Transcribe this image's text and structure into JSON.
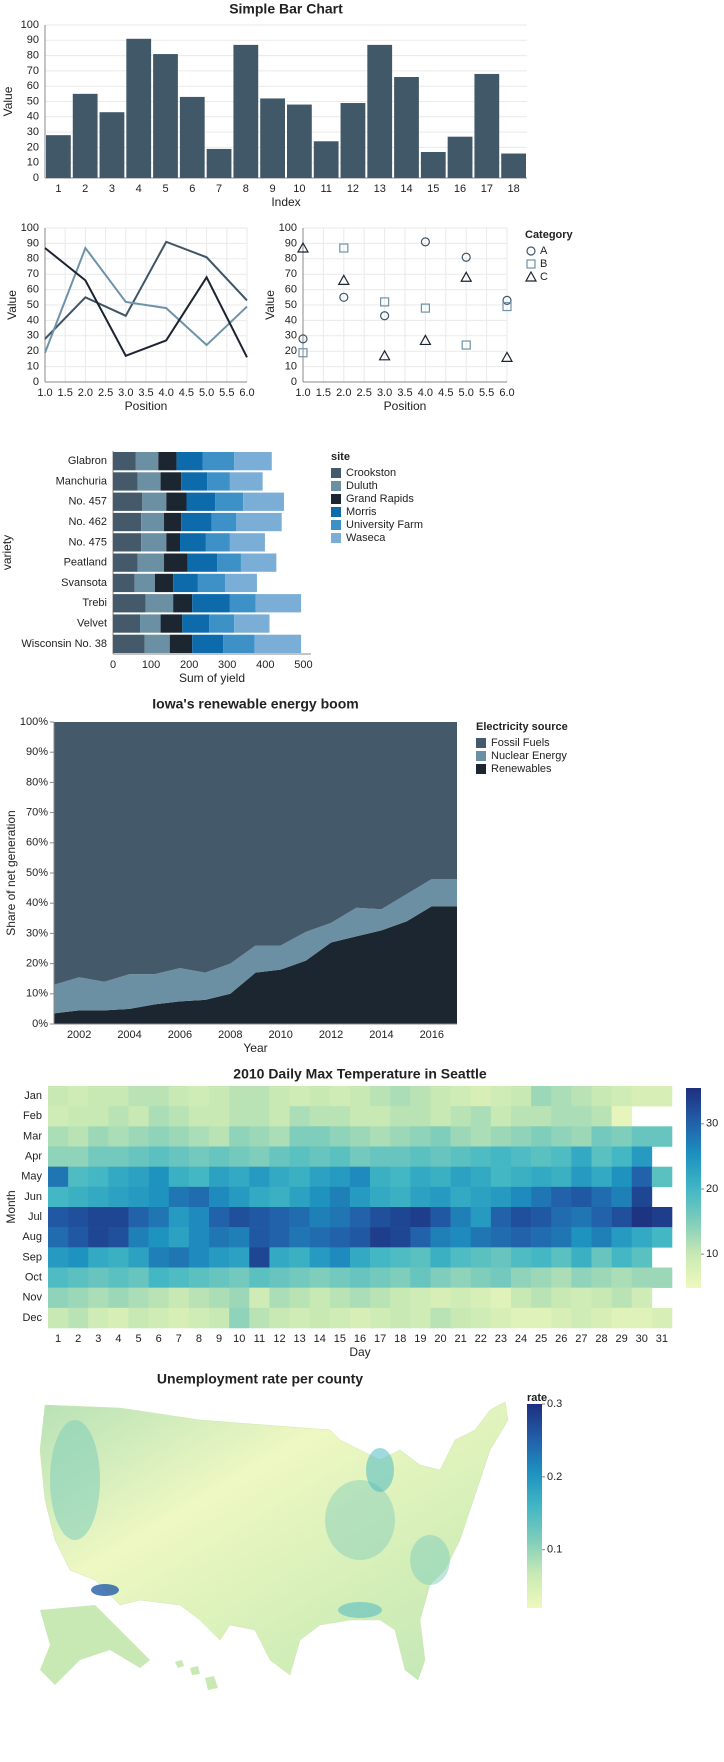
{
  "chart_data": [
    {
      "type": "bar",
      "title": "Simple Bar Chart",
      "x_label": "Index",
      "y_label": "Value",
      "categories": [
        "1",
        "2",
        "3",
        "4",
        "5",
        "6",
        "7",
        "8",
        "9",
        "10",
        "11",
        "12",
        "13",
        "14",
        "15",
        "16",
        "17",
        "18"
      ],
      "values": [
        28,
        55,
        43,
        91,
        81,
        53,
        19,
        87,
        52,
        48,
        24,
        49,
        87,
        66,
        17,
        27,
        68,
        16
      ],
      "color": "#415868",
      "ylim": [
        0,
        100
      ],
      "yticks": [
        0,
        10,
        20,
        30,
        40,
        50,
        60,
        70,
        80,
        90,
        100
      ],
      "grid": true
    },
    {
      "type": "line",
      "x_label": "Position",
      "y_label": "Value",
      "x": [
        1,
        2,
        3,
        4,
        5,
        6
      ],
      "series": [
        {
          "name": "A",
          "color": "#3f5566",
          "values": [
            28,
            55,
            43,
            91,
            81,
            53
          ]
        },
        {
          "name": "B",
          "color": "#6e93a8",
          "values": [
            19,
            87,
            52,
            48,
            24,
            49
          ]
        },
        {
          "name": "C",
          "color": "#1b2430",
          "values": [
            87,
            66,
            17,
            27,
            68,
            16
          ]
        }
      ],
      "xlim": [
        1,
        6
      ],
      "xticks": [
        {
          "value": 1,
          "label": "1.0"
        },
        {
          "value": 1.5,
          "label": "1.5"
        },
        {
          "value": 2,
          "label": "2.0"
        },
        {
          "value": 2.5,
          "label": "2.5"
        },
        {
          "value": 3,
          "label": "3.0"
        },
        {
          "value": 3.5,
          "label": "3.5"
        },
        {
          "value": 4,
          "label": "4.0"
        },
        {
          "value": 4.5,
          "label": "4.5"
        },
        {
          "value": 5,
          "label": "5.0"
        },
        {
          "value": 5.5,
          "label": "5.5"
        },
        {
          "value": 6,
          "label": "6.0"
        }
      ],
      "ylim": [
        0,
        100
      ],
      "yticks": [
        0,
        10,
        20,
        30,
        40,
        50,
        60,
        70,
        80,
        90,
        100
      ],
      "grid": true
    },
    {
      "type": "scatter",
      "x_label": "Position",
      "y_label": "Value",
      "legend_title": "Category",
      "x": [
        1,
        2,
        3,
        4,
        5,
        6
      ],
      "series": [
        {
          "name": "A",
          "color": "#3f5566",
          "shape": "circle",
          "values": [
            28,
            55,
            43,
            91,
            81,
            53
          ]
        },
        {
          "name": "B",
          "color": "#6e93a8",
          "shape": "square",
          "values": [
            19,
            87,
            52,
            48,
            24,
            49
          ]
        },
        {
          "name": "C",
          "color": "#1b2430",
          "shape": "triangle",
          "values": [
            87,
            66,
            17,
            27,
            68,
            16
          ]
        }
      ],
      "xlim": [
        1,
        6
      ],
      "xticks": [
        {
          "value": 1,
          "label": "1.0"
        },
        {
          "value": 1.5,
          "label": "1.5"
        },
        {
          "value": 2,
          "label": "2.0"
        },
        {
          "value": 2.5,
          "label": "2.5"
        },
        {
          "value": 3,
          "label": "3.0"
        },
        {
          "value": 3.5,
          "label": "3.5"
        },
        {
          "value": 4,
          "label": "4.0"
        },
        {
          "value": 4.5,
          "label": "4.5"
        },
        {
          "value": 5,
          "label": "5.0"
        },
        {
          "value": 5.5,
          "label": "5.5"
        },
        {
          "value": 6,
          "label": "6.0"
        }
      ],
      "ylim": [
        0,
        100
      ],
      "yticks": [
        0,
        10,
        20,
        30,
        40,
        50,
        60,
        70,
        80,
        90,
        100
      ],
      "grid": true
    },
    {
      "type": "hbar",
      "x_label": "Sum of yield",
      "y_label": "variety",
      "legend_title": "site",
      "categories": [
        "Glabron",
        "Manchuria",
        "No. 457",
        "No. 462",
        "No. 475",
        "Peatland",
        "Svansota",
        "Trebi",
        "Velvet",
        "Wisconsin No. 38"
      ],
      "series": [
        {
          "name": "Crookston",
          "color": "#445a6a",
          "values": [
            60,
            65,
            77,
            74,
            74,
            65,
            57,
            86,
            71,
            83
          ]
        },
        {
          "name": "Duluth",
          "color": "#6b8fa3",
          "values": [
            59,
            60,
            63,
            60,
            66,
            69,
            53,
            72,
            54,
            66
          ]
        },
        {
          "name": "Grand Rapids",
          "color": "#1b2631",
          "values": [
            48,
            54,
            53,
            45,
            36,
            62,
            48,
            50,
            57,
            59
          ]
        },
        {
          "name": "Morris",
          "color": "#0d6aab",
          "values": [
            68,
            68,
            75,
            80,
            68,
            78,
            65,
            99,
            71,
            81
          ]
        },
        {
          "name": "University Farm",
          "color": "#3d91c7",
          "values": [
            83,
            60,
            74,
            65,
            63,
            62,
            72,
            68,
            65,
            83
          ]
        },
        {
          "name": "Waseca",
          "color": "#7aaed6",
          "values": [
            99,
            86,
            107,
            119,
            92,
            93,
            83,
            119,
            93,
            122
          ]
        }
      ],
      "xlim": [
        0,
        520
      ],
      "xticks": [
        0,
        100,
        200,
        300,
        400,
        500
      ],
      "grid": true
    },
    {
      "type": "area",
      "title": "Iowa's renewable energy boom",
      "x_label": "Year",
      "y_label": "Share of net generation",
      "legend_title": "Electricity source",
      "x": [
        2001,
        2002,
        2003,
        2004,
        2005,
        2006,
        2007,
        2008,
        2009,
        2010,
        2011,
        2012,
        2013,
        2014,
        2015,
        2016,
        2017
      ],
      "series": [
        {
          "name": "Fossil Fuels",
          "color": "#445a6a",
          "values": [
            87,
            84.5,
            86,
            83.5,
            83.5,
            81.5,
            83,
            80,
            74,
            74,
            69.5,
            66.5,
            61.5,
            62,
            57,
            52,
            52
          ]
        },
        {
          "name": "Nuclear Energy",
          "color": "#6b8fa3",
          "values": [
            9.5,
            11,
            9.5,
            11.5,
            10,
            11,
            9,
            10,
            9,
            8,
            9.5,
            6.5,
            9.5,
            7,
            9,
            9,
            9
          ]
        },
        {
          "name": "Renewables",
          "color": "#1b2631",
          "values": [
            3.5,
            4.5,
            4.5,
            5,
            6.5,
            7.5,
            8,
            10,
            17,
            18,
            21,
            27,
            29,
            31,
            34,
            39,
            39
          ]
        }
      ],
      "xlim": [
        2001,
        2017
      ],
      "xticks": [
        2002,
        2004,
        2006,
        2008,
        2010,
        2012,
        2014,
        2016
      ],
      "ylim": [
        0,
        100
      ],
      "yticks": [
        {
          "value": 0,
          "label": "0%"
        },
        {
          "value": 10,
          "label": "10%"
        },
        {
          "value": 20,
          "label": "20%"
        },
        {
          "value": 30,
          "label": "30%"
        },
        {
          "value": 40,
          "label": "40%"
        },
        {
          "value": 50,
          "label": "50%"
        },
        {
          "value": 60,
          "label": "60%"
        },
        {
          "value": 70,
          "label": "70%"
        },
        {
          "value": 80,
          "label": "80%"
        },
        {
          "value": 90,
          "label": "90%"
        },
        {
          "value": 100,
          "label": "100%"
        }
      ]
    },
    {
      "type": "heatmap",
      "title": "2010 Daily Max Temperature in Seattle",
      "x_label": "Day",
      "y_label": "Month",
      "categories": [
        "1",
        "2",
        "3",
        "4",
        "5",
        "6",
        "7",
        "8",
        "9",
        "10",
        "11",
        "12",
        "13",
        "14",
        "15",
        "16",
        "17",
        "18",
        "19",
        "20",
        "21",
        "22",
        "23",
        "24",
        "25",
        "26",
        "27",
        "28",
        "29",
        "30",
        "31"
      ],
      "rows": [
        "Jan",
        "Feb",
        "Mar",
        "Apr",
        "May",
        "Jun",
        "Jul",
        "Aug",
        "Sep",
        "Oct",
        "Nov",
        "Dec"
      ],
      "values": [
        [
          10,
          9,
          10,
          10,
          11,
          11,
          10,
          9,
          10,
          11,
          11,
          10,
          9,
          10,
          9,
          10,
          11,
          12,
          11,
          10,
          9,
          8,
          9,
          10,
          13,
          12,
          11,
          10,
          9,
          8,
          8
        ],
        [
          9,
          10,
          10,
          11,
          10,
          12,
          11,
          10,
          10,
          11,
          11,
          10,
          12,
          11,
          11,
          10,
          10,
          11,
          11,
          10,
          11,
          12,
          10,
          11,
          11,
          12,
          12,
          11,
          6,
          null,
          null
        ],
        [
          12,
          11,
          13,
          12,
          13,
          14,
          13,
          12,
          11,
          14,
          13,
          12,
          15,
          15,
          14,
          13,
          12,
          13,
          14,
          15,
          13,
          12,
          13,
          14,
          15,
          14,
          13,
          16,
          15,
          17,
          17
        ],
        [
          14,
          14,
          16,
          16,
          17,
          18,
          17,
          16,
          17,
          16,
          15,
          17,
          18,
          17,
          18,
          16,
          17,
          17,
          18,
          17,
          18,
          19,
          20,
          19,
          18,
          19,
          22,
          18,
          20,
          24,
          null
        ],
        [
          28,
          19,
          20,
          22,
          23,
          25,
          21,
          20,
          23,
          22,
          24,
          22,
          21,
          23,
          24,
          26,
          21,
          20,
          22,
          21,
          23,
          22,
          20,
          21,
          22,
          21,
          24,
          22,
          25,
          30,
          18
        ],
        [
          20,
          21,
          22,
          23,
          24,
          25,
          28,
          29,
          26,
          24,
          22,
          21,
          23,
          25,
          27,
          24,
          22,
          21,
          23,
          24,
          22,
          23,
          24,
          26,
          28,
          30,
          31,
          29,
          27,
          33,
          null
        ],
        [
          31,
          32,
          33,
          33,
          30,
          28,
          24,
          26,
          30,
          32,
          31,
          30,
          29,
          27,
          28,
          30,
          32,
          33,
          34,
          31,
          27,
          24,
          30,
          32,
          31,
          29,
          28,
          30,
          32,
          35,
          34
        ],
        [
          29,
          31,
          33,
          32,
          27,
          25,
          23,
          26,
          28,
          27,
          31,
          30,
          28,
          29,
          30,
          31,
          34,
          33,
          30,
          27,
          26,
          28,
          29,
          30,
          29,
          28,
          25,
          27,
          24,
          22,
          20
        ],
        [
          24,
          25,
          22,
          21,
          23,
          27,
          28,
          26,
          24,
          23,
          33,
          22,
          21,
          24,
          26,
          22,
          20,
          19,
          18,
          21,
          19,
          18,
          17,
          19,
          20,
          18,
          21,
          17,
          20,
          18,
          null
        ],
        [
          19,
          18,
          17,
          18,
          17,
          20,
          19,
          18,
          17,
          16,
          18,
          17,
          16,
          15,
          16,
          17,
          16,
          15,
          17,
          15,
          14,
          15,
          16,
          14,
          13,
          12,
          14,
          13,
          12,
          13,
          13
        ],
        [
          14,
          13,
          12,
          13,
          12,
          11,
          10,
          11,
          12,
          13,
          9,
          12,
          11,
          10,
          11,
          12,
          11,
          10,
          9,
          8,
          9,
          8,
          7,
          10,
          11,
          10,
          9,
          10,
          11,
          9,
          null
        ],
        [
          10,
          11,
          9,
          8,
          10,
          9,
          8,
          9,
          10,
          14,
          11,
          10,
          9,
          10,
          9,
          8,
          9,
          10,
          9,
          11,
          10,
          9,
          8,
          7,
          7,
          8,
          9,
          8,
          7,
          7,
          8
        ]
      ],
      "colorlim": [
        4.8,
        35.5
      ],
      "colorticks": [
        10,
        20,
        30
      ]
    },
    {
      "type": "map",
      "title": "Unemployment rate per county",
      "legend_title": "rate",
      "colorlim": [
        0.02,
        0.3
      ],
      "colorticks": [
        0.1,
        0.2,
        0.3
      ]
    }
  ]
}
